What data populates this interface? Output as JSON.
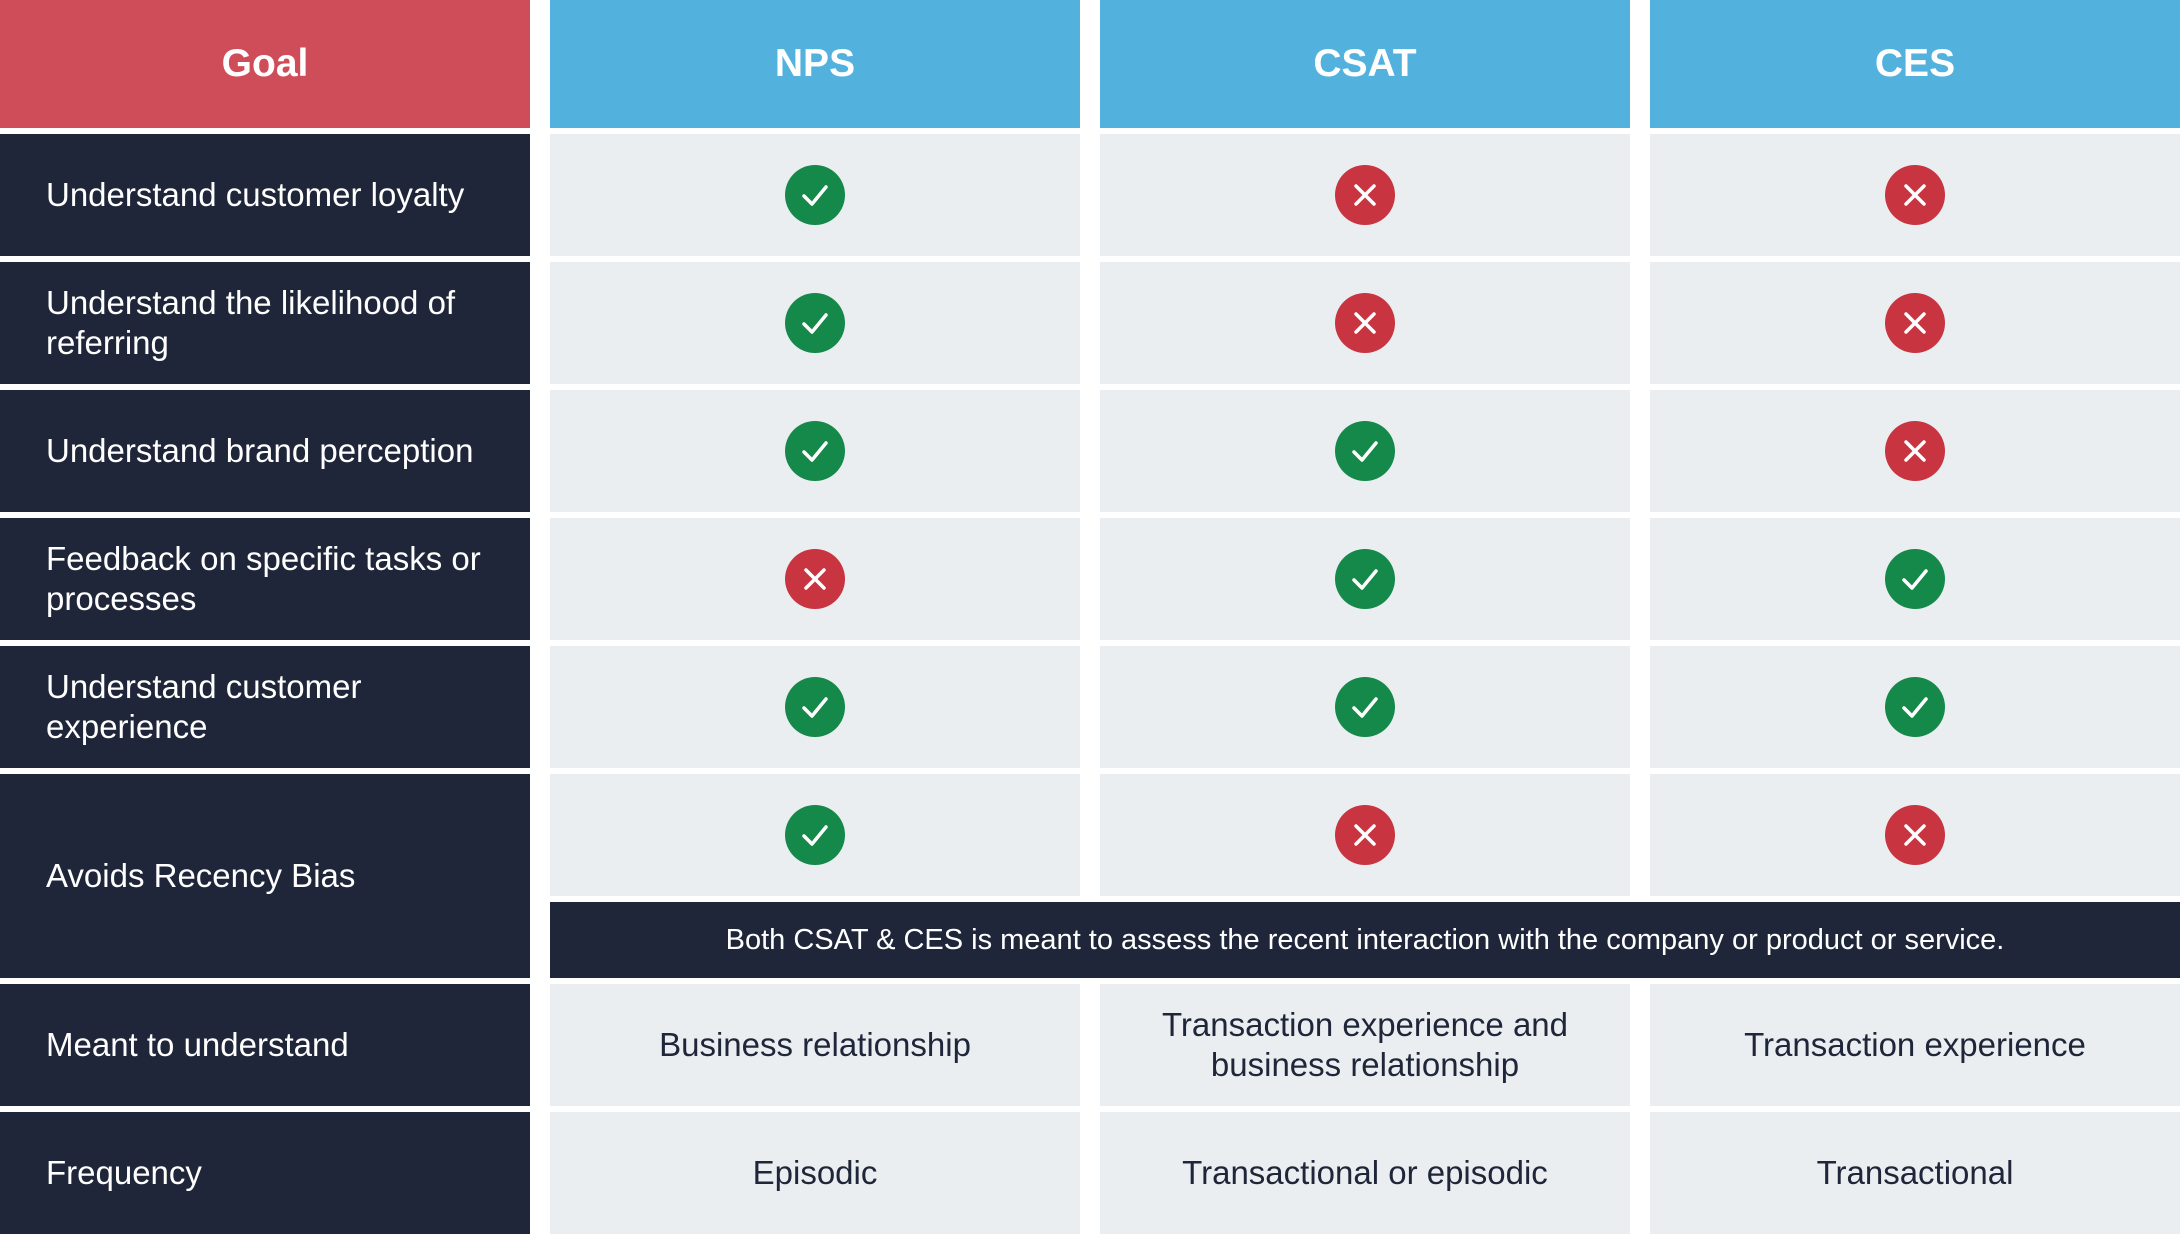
{
  "colors": {
    "goal_header": "#CF4D59",
    "metric_header": "#52B2DD",
    "dark": "#202639",
    "cell": "#EAEEF1",
    "check": "#14894A",
    "cross": "#C8343F"
  },
  "header": {
    "goal": "Goal",
    "metrics": [
      "NPS",
      "CSAT",
      "CES"
    ]
  },
  "rows": [
    {
      "goal": "Understand customer loyalty",
      "values": [
        true,
        false,
        false
      ]
    },
    {
      "goal": "Understand the likelihood of referring",
      "values": [
        true,
        false,
        false
      ]
    },
    {
      "goal": "Understand brand perception",
      "values": [
        true,
        true,
        false
      ]
    },
    {
      "goal": "Feedback on specific tasks or processes",
      "values": [
        false,
        true,
        true
      ]
    },
    {
      "goal": "Understand customer experience",
      "values": [
        true,
        true,
        true
      ]
    },
    {
      "goal": "Avoids Recency Bias",
      "values": [
        true,
        false,
        false
      ]
    }
  ],
  "note": "Both CSAT & CES is meant to assess the recent interaction with the company or product or service.",
  "text_rows": [
    {
      "goal": "Meant to understand",
      "values": [
        "Business relationship",
        "Transaction experience and business relationship",
        "Transaction experience"
      ]
    },
    {
      "goal": "Frequency",
      "values": [
        "Episodic",
        "Transactional or episodic",
        "Transactional"
      ]
    }
  ],
  "icons": {
    "true": "check-circle-icon",
    "false": "x-circle-icon"
  }
}
